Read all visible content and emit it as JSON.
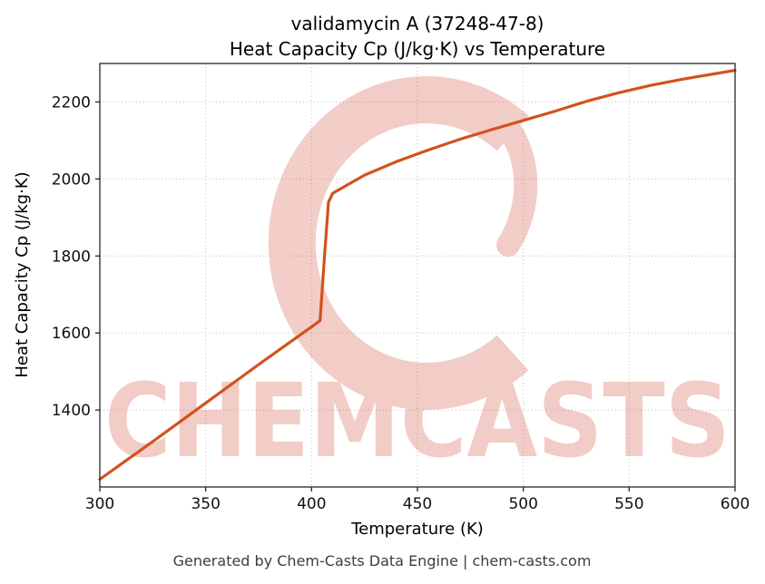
{
  "title": {
    "line1": "validamycin A (37248-47-8)",
    "line2": "Heat Capacity Cp (J/kg·K) vs Temperature"
  },
  "footer": {
    "text": "Generated by Chem-Casts Data Engine | chem-casts.com"
  },
  "watermark": {
    "text": "CHEMCASTS",
    "color": "#d24732"
  },
  "chart_data": {
    "type": "line",
    "title": "validamycin A (37248-47-8) Heat Capacity Cp (J/kg·K) vs Temperature",
    "xlabel": "Temperature (K)",
    "ylabel": "Heat Capacity Cp (J/kg·K)",
    "xlim": [
      300,
      600
    ],
    "ylim": [
      1200,
      2300
    ],
    "xticks": [
      300,
      350,
      400,
      450,
      500,
      550,
      600
    ],
    "yticks": [
      1400,
      1600,
      1800,
      2000,
      2200
    ],
    "grid": true,
    "legend_position": "none",
    "line_color": "#d2521e",
    "series": [
      {
        "name": "Heat Capacity Cp",
        "x": [
          300,
          325,
          350,
          375,
          400,
          404,
          406,
          408,
          410,
          425,
          440,
          455,
          470,
          485,
          500,
          515,
          530,
          545,
          560,
          575,
          590,
          600
        ],
        "y": [
          1220,
          1318,
          1418,
          1518,
          1616,
          1632,
          1790,
          1940,
          1963,
          2010,
          2045,
          2075,
          2103,
          2128,
          2152,
          2176,
          2202,
          2224,
          2243,
          2259,
          2273,
          2282
        ]
      }
    ]
  }
}
